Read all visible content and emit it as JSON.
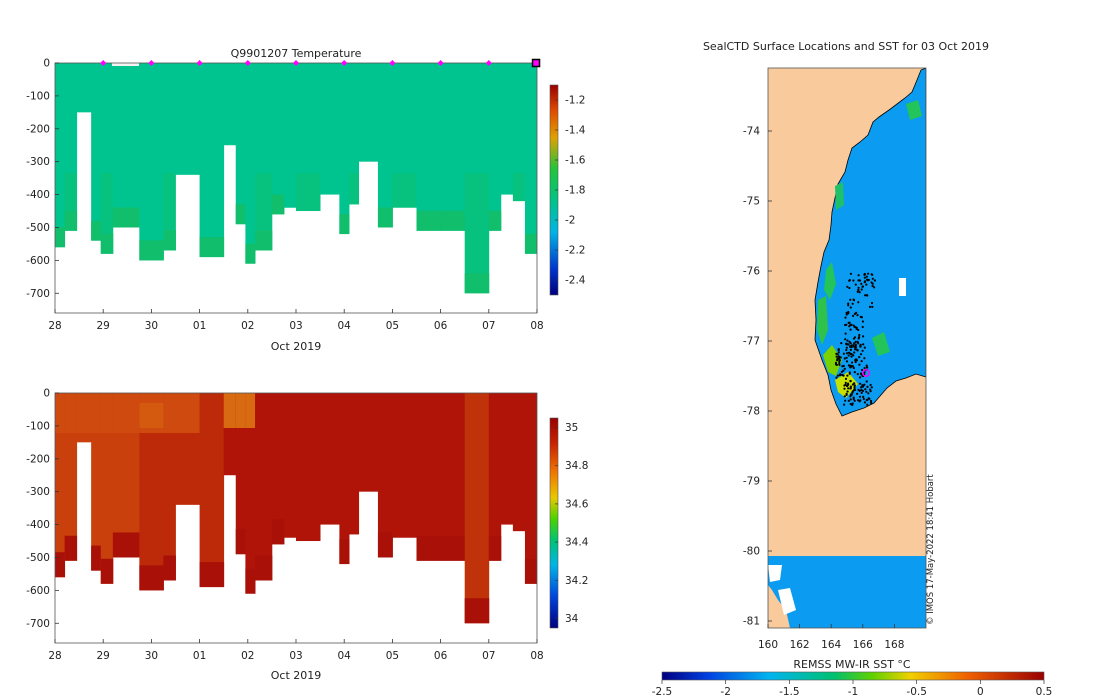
{
  "colors": {
    "land": "#f9cb9c",
    "ocean_ice": "#0b9bf0",
    "temp_fill": "#00c490",
    "salt_dark": "#b21b0a",
    "salt_mid": "#c83a0a",
    "magenta": "#ff00ff"
  },
  "chart_data": [
    {
      "type": "heatmap",
      "name": "temperature-section",
      "title": "Q9901207  Temperature",
      "xlabel": "Oct 2019",
      "ylabel": "",
      "x_ticks": [
        "28",
        "29",
        "30",
        "01",
        "02",
        "03",
        "04",
        "05",
        "06",
        "07",
        "08"
      ],
      "x_range_days": [
        0,
        10
      ],
      "y_ticks": [
        "0",
        "-100",
        "-200",
        "-300",
        "-400",
        "-500",
        "-600",
        "-700"
      ],
      "y_range": [
        -760,
        0
      ],
      "colorbar": {
        "ticks": [
          "-1.2",
          "-1.4",
          "-1.6",
          "-1.8",
          "-2",
          "-2.2",
          "-2.4"
        ],
        "range": [
          -2.5,
          -1.1
        ]
      },
      "profile_markers_days": [
        1,
        2,
        3,
        4,
        5,
        6,
        7,
        8,
        9,
        9.98
      ],
      "profiles": [
        {
          "day": 0.0,
          "depth": -560
        },
        {
          "day": 0.2,
          "depth": -510
        },
        {
          "day": 0.45,
          "depth": -150
        },
        {
          "day": 0.75,
          "depth": -540
        },
        {
          "day": 0.95,
          "depth": -580
        },
        {
          "day": 1.2,
          "depth": -500
        },
        {
          "day": 1.75,
          "depth": -600
        },
        {
          "day": 2.25,
          "depth": -570
        },
        {
          "day": 2.5,
          "depth": -340
        },
        {
          "day": 3.0,
          "depth": -590
        },
        {
          "day": 3.5,
          "depth": -250
        },
        {
          "day": 3.75,
          "depth": -490
        },
        {
          "day": 3.95,
          "depth": -610
        },
        {
          "day": 4.15,
          "depth": -570
        },
        {
          "day": 4.5,
          "depth": -460
        },
        {
          "day": 4.75,
          "depth": -440
        },
        {
          "day": 5.0,
          "depth": -450
        },
        {
          "day": 5.5,
          "depth": -400
        },
        {
          "day": 5.9,
          "depth": -520
        },
        {
          "day": 6.1,
          "depth": -430
        },
        {
          "day": 6.3,
          "depth": -300
        },
        {
          "day": 6.7,
          "depth": -500
        },
        {
          "day": 7.0,
          "depth": -440
        },
        {
          "day": 7.5,
          "depth": -510
        },
        {
          "day": 8.0,
          "depth": -510
        },
        {
          "day": 8.5,
          "depth": -700
        },
        {
          "day": 9.0,
          "depth": -510
        },
        {
          "day": 9.25,
          "depth": -400
        },
        {
          "day": 9.5,
          "depth": -420
        },
        {
          "day": 9.75,
          "depth": -580
        }
      ]
    },
    {
      "type": "heatmap",
      "name": "salinity-section",
      "title": "",
      "xlabel": "Oct 2019",
      "x_ticks": [
        "28",
        "29",
        "30",
        "01",
        "02",
        "03",
        "04",
        "05",
        "06",
        "07",
        "08"
      ],
      "y_ticks": [
        "0",
        "-100",
        "-200",
        "-300",
        "-400",
        "-500",
        "-600",
        "-700"
      ],
      "y_range": [
        -760,
        0
      ],
      "colorbar": {
        "ticks": [
          "35",
          "34.8",
          "34.6",
          "34.4",
          "34.2",
          "34"
        ],
        "range": [
          33.95,
          35.05
        ]
      }
    },
    {
      "type": "heatmap",
      "name": "sst-map",
      "title": "SealCTD Surface Locations and SST for 03 Oct 2019",
      "xlabel": "",
      "x_ticks": [
        "160",
        "162",
        "164",
        "166",
        "168"
      ],
      "x_range": [
        160,
        170
      ],
      "y_ticks": [
        "-74",
        "-75",
        "-76",
        "-77",
        "-78",
        "-79",
        "-80",
        "-81"
      ],
      "y_range": [
        -81.1,
        -73.1
      ],
      "colorbar": {
        "label": "REMSS MW-IR SST °C",
        "ticks": [
          "-2.5",
          "-2",
          "-1.5",
          "-1",
          "-0.5",
          "0",
          "0.5"
        ],
        "range": [
          -2.5,
          0.5
        ]
      },
      "credit": "© IMOS 17-May-2022 18:41 Hobart"
    }
  ]
}
